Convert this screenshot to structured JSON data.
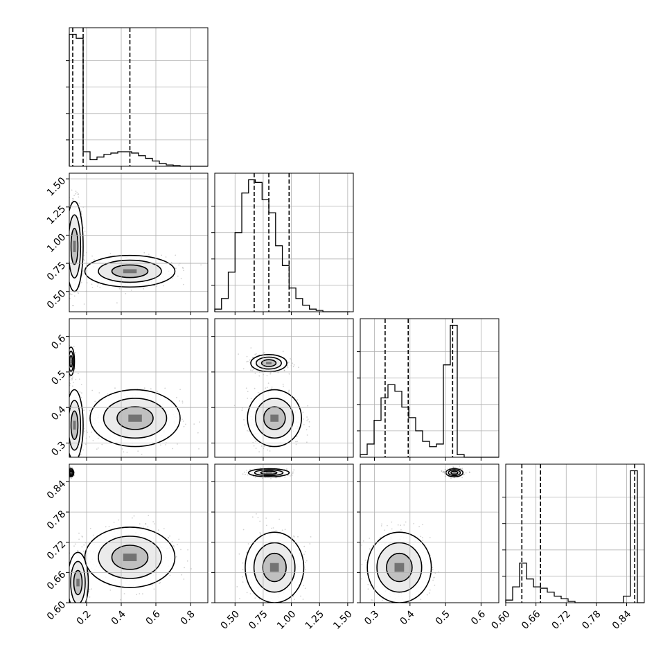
{
  "chart_data": {
    "type": "corner",
    "parameters": 4,
    "axes": [
      {
        "index": 0,
        "range": [
          0.1,
          0.9
        ],
        "ticks": [
          0.2,
          0.4,
          0.6,
          0.8
        ],
        "tick_labels": [
          "0.2",
          "0.4",
          "0.6",
          "0.8"
        ],
        "quantiles": [
          0.12,
          0.18,
          0.45
        ],
        "histogram": {
          "start": 0.1,
          "bin_width": 0.04,
          "counts": [
            1.0,
            0.97,
            0.11,
            0.05,
            0.07,
            0.09,
            0.1,
            0.11,
            0.11,
            0.1,
            0.08,
            0.06,
            0.04,
            0.02,
            0.01,
            0.005,
            0.0,
            0.0,
            0.0,
            0.0
          ]
        }
      },
      {
        "index": 1,
        "range": [
          0.32,
          1.55
        ],
        "ticks": [
          0.5,
          0.75,
          1.0,
          1.25,
          1.5
        ],
        "tick_labels": [
          "0.50",
          "0.75",
          "1.00",
          "1.25",
          "1.50"
        ],
        "quantiles": [
          0.67,
          0.8,
          0.98
        ],
        "histogram": {
          "start": 0.32,
          "bin_width": 0.06,
          "counts": [
            0.02,
            0.1,
            0.3,
            0.6,
            0.9,
            1.0,
            0.98,
            0.85,
            0.75,
            0.5,
            0.35,
            0.18,
            0.1,
            0.05,
            0.02,
            0.01,
            0.0,
            0.0,
            0.0,
            0.0
          ]
        }
      },
      {
        "index": 2,
        "range": [
          0.26,
          0.65
        ],
        "ticks": [
          0.3,
          0.4,
          0.5,
          0.6
        ],
        "tick_labels": [
          "0.3",
          "0.4",
          "0.5",
          "0.6"
        ],
        "quantiles": [
          0.33,
          0.395,
          0.52
        ],
        "histogram": {
          "start": 0.26,
          "bin_width": 0.0195,
          "counts": [
            0.02,
            0.1,
            0.28,
            0.45,
            0.55,
            0.5,
            0.38,
            0.3,
            0.2,
            0.12,
            0.08,
            0.1,
            0.7,
            1.0,
            0.02,
            0.0,
            0.0,
            0.0,
            0.0,
            0.0
          ]
        }
      },
      {
        "index": 3,
        "range": [
          0.6,
          0.875
        ],
        "ticks": [
          0.6,
          0.66,
          0.72,
          0.78,
          0.84
        ],
        "tick_labels": [
          "0.60",
          "0.66",
          "0.72",
          "0.78",
          "0.84"
        ],
        "quantiles": [
          0.632,
          0.669,
          0.856
        ],
        "histogram": {
          "start": 0.6,
          "bin_width": 0.01375,
          "counts": [
            0.02,
            0.12,
            0.3,
            0.18,
            0.12,
            0.11,
            0.08,
            0.05,
            0.03,
            0.01,
            0.0,
            0.0,
            0.0,
            0.0,
            0.0,
            0.0,
            0.0,
            0.05,
            1.0,
            0.0
          ]
        }
      }
    ],
    "pairs": [
      {
        "x": 0,
        "y": 1,
        "clusters": [
          {
            "cx": 0.13,
            "cy": 0.9,
            "sx": 0.025,
            "sy": 0.2,
            "weight": 0.55
          },
          {
            "cx": 0.45,
            "cy": 0.68,
            "sx": 0.13,
            "sy": 0.07,
            "weight": 0.45
          }
        ]
      },
      {
        "x": 0,
        "y": 2,
        "clusters": [
          {
            "cx": 0.11,
            "cy": 0.53,
            "sx": 0.01,
            "sy": 0.02,
            "weight": 0.2
          },
          {
            "cx": 0.13,
            "cy": 0.35,
            "sx": 0.025,
            "sy": 0.05,
            "weight": 0.35
          },
          {
            "cx": 0.48,
            "cy": 0.37,
            "sx": 0.13,
            "sy": 0.04,
            "weight": 0.45
          }
        ]
      },
      {
        "x": 1,
        "y": 2,
        "clusters": [
          {
            "cx": 0.8,
            "cy": 0.525,
            "sx": 0.08,
            "sy": 0.012,
            "weight": 0.45
          },
          {
            "cx": 0.85,
            "cy": 0.37,
            "sx": 0.12,
            "sy": 0.04,
            "weight": 0.55
          }
        ]
      },
      {
        "x": 0,
        "y": 3,
        "clusters": [
          {
            "cx": 0.11,
            "cy": 0.858,
            "sx": 0.008,
            "sy": 0.004,
            "weight": 0.3
          },
          {
            "cx": 0.15,
            "cy": 0.64,
            "sx": 0.03,
            "sy": 0.03,
            "weight": 0.2
          },
          {
            "cx": 0.45,
            "cy": 0.69,
            "sx": 0.13,
            "sy": 0.03,
            "weight": 0.5
          }
        ]
      },
      {
        "x": 1,
        "y": 3,
        "clusters": [
          {
            "cx": 0.8,
            "cy": 0.858,
            "sx": 0.09,
            "sy": 0.004,
            "weight": 0.45
          },
          {
            "cx": 0.85,
            "cy": 0.67,
            "sx": 0.13,
            "sy": 0.035,
            "weight": 0.55
          }
        ]
      },
      {
        "x": 2,
        "y": 3,
        "clusters": [
          {
            "cx": 0.525,
            "cy": 0.858,
            "sx": 0.012,
            "sy": 0.004,
            "weight": 0.45
          },
          {
            "cx": 0.37,
            "cy": 0.67,
            "sx": 0.045,
            "sy": 0.035,
            "weight": 0.55
          }
        ]
      }
    ],
    "colors": {
      "histogram": "#000000",
      "quantile_line": "#000000",
      "grid": "#b0b0b0",
      "scatter": "#000000",
      "density": "#000000"
    }
  }
}
